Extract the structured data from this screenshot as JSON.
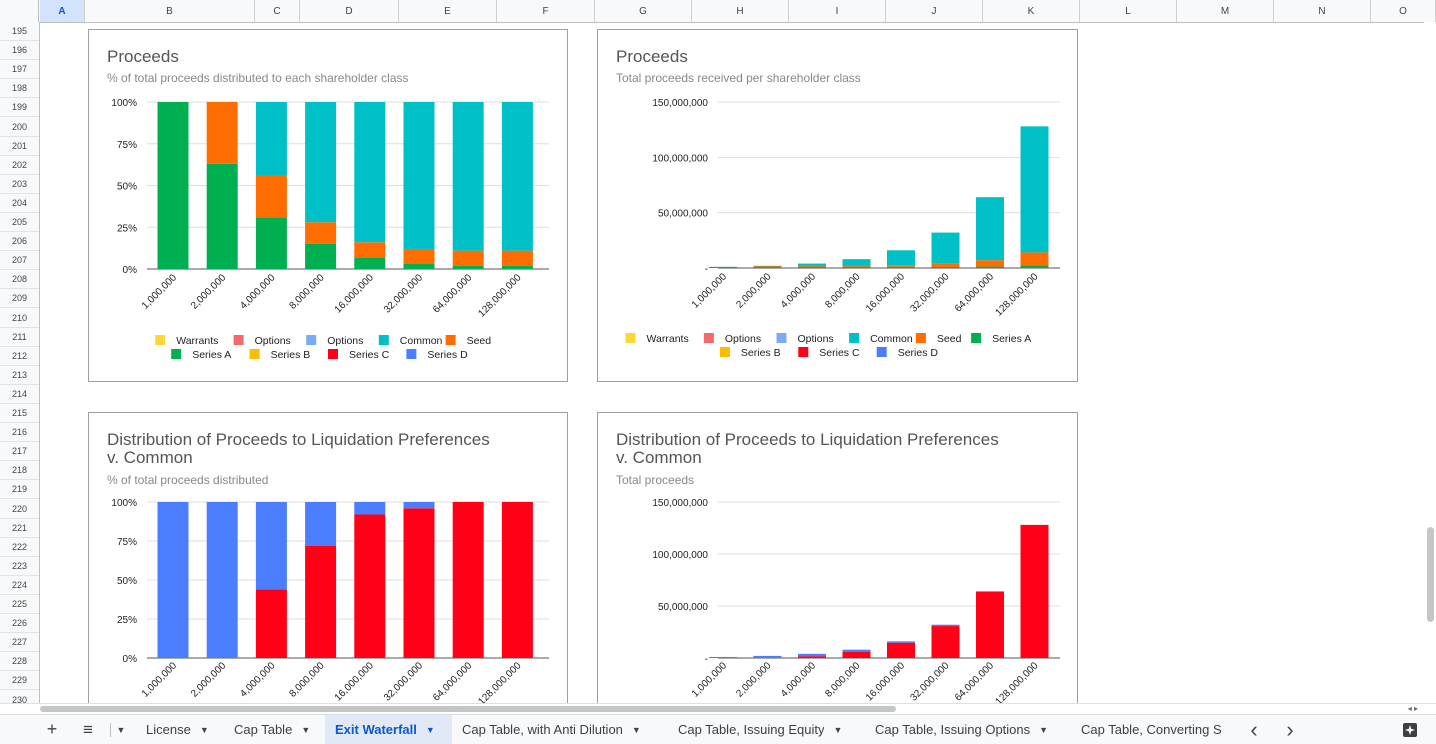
{
  "columns": [
    "A",
    "B",
    "C",
    "D",
    "E",
    "F",
    "G",
    "H",
    "I",
    "J",
    "K",
    "L",
    "M",
    "N",
    "O"
  ],
  "active_column": "A",
  "rows": [
    "195",
    "196",
    "197",
    "198",
    "199",
    "200",
    "201",
    "202",
    "203",
    "204",
    "205",
    "206",
    "207",
    "208",
    "209",
    "210",
    "211",
    "212",
    "213",
    "214",
    "215",
    "216",
    "217",
    "218",
    "219",
    "220",
    "221",
    "222",
    "223",
    "224",
    "225",
    "226",
    "227",
    "228",
    "229",
    "230"
  ],
  "colors": {
    "warrants": "#fdd835",
    "options1": "#f4696b",
    "options2": "#7baaf7",
    "common": "#00c0c7",
    "seed": "#ff6d01",
    "series_a": "#00b050",
    "series_b": "#fbbc04",
    "series_c": "#ff0016",
    "series_d": "#4a7eff"
  },
  "tabs": {
    "add_sheet": "+",
    "all_sheets": "≡",
    "list": [
      {
        "label": "License",
        "active": false
      },
      {
        "label": "Cap Table",
        "active": false
      },
      {
        "label": "Exit Waterfall",
        "active": true
      },
      {
        "label": "Cap Table, with Anti Dilution",
        "active": false
      },
      {
        "label": "Cap Table, Issuing Equity",
        "active": false
      },
      {
        "label": "Cap Table, Issuing Options",
        "active": false
      },
      {
        "label": "Cap Table, Converting S",
        "active": false
      }
    ],
    "prev": "‹",
    "next": "›"
  },
  "chart_data": [
    {
      "type": "bar",
      "stacked": true,
      "percent": true,
      "title": "Proceeds",
      "subtitle": "% of total proceeds distributed to each shareholder class",
      "categories": [
        "1,000,000",
        "2,000,000",
        "4,000,000",
        "8,000,000",
        "16,000,000",
        "32,000,000",
        "64,000,000",
        "128,000,000"
      ],
      "ylim": [
        0,
        100
      ],
      "yticks": [
        "100%",
        "75%",
        "50%",
        "25%",
        "0%"
      ],
      "series": [
        {
          "name": "Warrants",
          "color_key": "warrants",
          "values": [
            0,
            0,
            0,
            0,
            0,
            0,
            0,
            0
          ]
        },
        {
          "name": "Options",
          "color_key": "options1",
          "values": [
            0,
            0,
            0,
            0,
            0,
            0,
            0,
            0
          ]
        },
        {
          "name": "Options",
          "color_key": "options2",
          "values": [
            0,
            0,
            0,
            0,
            0,
            0,
            0,
            0
          ]
        },
        {
          "name": "Common",
          "color_key": "common",
          "values": [
            0,
            0,
            44,
            72,
            84,
            88,
            89,
            89
          ]
        },
        {
          "name": "Seed",
          "color_key": "seed",
          "values": [
            0,
            37,
            25,
            13,
            9,
            9,
            9,
            9
          ]
        },
        {
          "name": "Series A",
          "color_key": "series_a",
          "values": [
            100,
            63,
            31,
            15,
            7,
            3,
            2,
            2
          ]
        },
        {
          "name": "Series B",
          "color_key": "series_b",
          "values": [
            0,
            0,
            0,
            0,
            0,
            0,
            0,
            0
          ]
        },
        {
          "name": "Series C",
          "color_key": "series_c",
          "values": [
            0,
            0,
            0,
            0,
            0,
            0,
            0,
            0
          ]
        },
        {
          "name": "Series D",
          "color_key": "series_d",
          "values": [
            0,
            0,
            0,
            0,
            0,
            0,
            0,
            0
          ]
        }
      ],
      "legend_rows": [
        [
          0,
          1,
          2,
          3,
          4
        ],
        [
          5,
          6,
          7,
          8
        ]
      ]
    },
    {
      "type": "bar",
      "stacked": true,
      "title": "Proceeds",
      "subtitle": "Total proceeds received per shareholder class",
      "categories": [
        "1,000,000",
        "2,000,000",
        "4,000,000",
        "8,000,000",
        "16,000,000",
        "32,000,000",
        "64,000,000",
        "128,000,000"
      ],
      "ylim": [
        0,
        150000000
      ],
      "ytick_values": [
        150000000,
        100000000,
        50000000,
        0
      ],
      "yticks": [
        "150,000,000",
        "100,000,000",
        "50,000,000",
        "-"
      ],
      "series": [
        {
          "name": "Warrants",
          "color_key": "warrants",
          "values": [
            0,
            0,
            0,
            0,
            0,
            0,
            0,
            0
          ]
        },
        {
          "name": "Options",
          "color_key": "options1",
          "values": [
            0,
            0,
            0,
            0,
            0,
            0,
            0,
            0
          ]
        },
        {
          "name": "Options",
          "color_key": "options2",
          "values": [
            0,
            0,
            0,
            0,
            0,
            0,
            0,
            0
          ]
        },
        {
          "name": "Common",
          "color_key": "common",
          "values": [
            0,
            0,
            1760000,
            5760000,
            13440000,
            28160000,
            56960000,
            113920000
          ]
        },
        {
          "name": "Seed",
          "color_key": "seed",
          "values": [
            0,
            740000,
            1000000,
            1040000,
            1440000,
            2880000,
            5760000,
            11520000
          ]
        },
        {
          "name": "Series A",
          "color_key": "series_a",
          "values": [
            1000000,
            1260000,
            1240000,
            1200000,
            1120000,
            960000,
            1280000,
            2560000
          ]
        },
        {
          "name": "Series B",
          "color_key": "series_b",
          "values": [
            0,
            0,
            0,
            0,
            0,
            0,
            0,
            0
          ]
        },
        {
          "name": "Series C",
          "color_key": "series_c",
          "values": [
            0,
            0,
            0,
            0,
            0,
            0,
            0,
            0
          ]
        },
        {
          "name": "Series D",
          "color_key": "series_d",
          "values": [
            0,
            0,
            0,
            0,
            0,
            0,
            0,
            0
          ]
        }
      ],
      "legend_rows": [
        [
          0,
          1,
          2,
          3,
          4,
          5
        ],
        [
          6,
          7,
          8
        ]
      ]
    },
    {
      "type": "bar",
      "stacked": true,
      "percent": true,
      "title": "Distribution of Proceeds to Liquidation Preferences v. Common",
      "subtitle": "% of total proceeds distributed",
      "categories": [
        "1,000,000",
        "2,000,000",
        "4,000,000",
        "8,000,000",
        "16,000,000",
        "32,000,000",
        "64,000,000",
        "128,000,000"
      ],
      "ylim": [
        0,
        100
      ],
      "yticks": [
        "100%",
        "75%",
        "50%",
        "25%",
        "0%"
      ],
      "series": [
        {
          "name": "",
          "color_key": "series_d",
          "values": [
            100,
            100,
            56,
            28,
            8,
            4,
            0,
            0
          ]
        },
        {
          "name": "",
          "color_key": "series_c",
          "values": [
            0,
            0,
            44,
            72,
            92,
            96,
            100,
            100
          ]
        }
      ]
    },
    {
      "type": "bar",
      "stacked": true,
      "title": "Distribution of Proceeds to Liquidation Preferences v. Common",
      "subtitle": "Total proceeds",
      "categories": [
        "1,000,000",
        "2,000,000",
        "4,000,000",
        "8,000,000",
        "16,000,000",
        "32,000,000",
        "64,000,000",
        "128,000,000"
      ],
      "ylim": [
        0,
        150000000
      ],
      "ytick_values": [
        150000000,
        100000000,
        50000000,
        0
      ],
      "yticks": [
        "150,000,000",
        "100,000,000",
        "50,000,000",
        "-"
      ],
      "series": [
        {
          "name": "",
          "color_key": "series_d",
          "values": [
            1000000,
            2000000,
            2240000,
            2240000,
            1280000,
            1280000,
            0,
            0
          ]
        },
        {
          "name": "",
          "color_key": "series_c",
          "values": [
            0,
            0,
            1760000,
            5760000,
            14720000,
            30720000,
            64000000,
            128000000
          ]
        }
      ]
    }
  ]
}
